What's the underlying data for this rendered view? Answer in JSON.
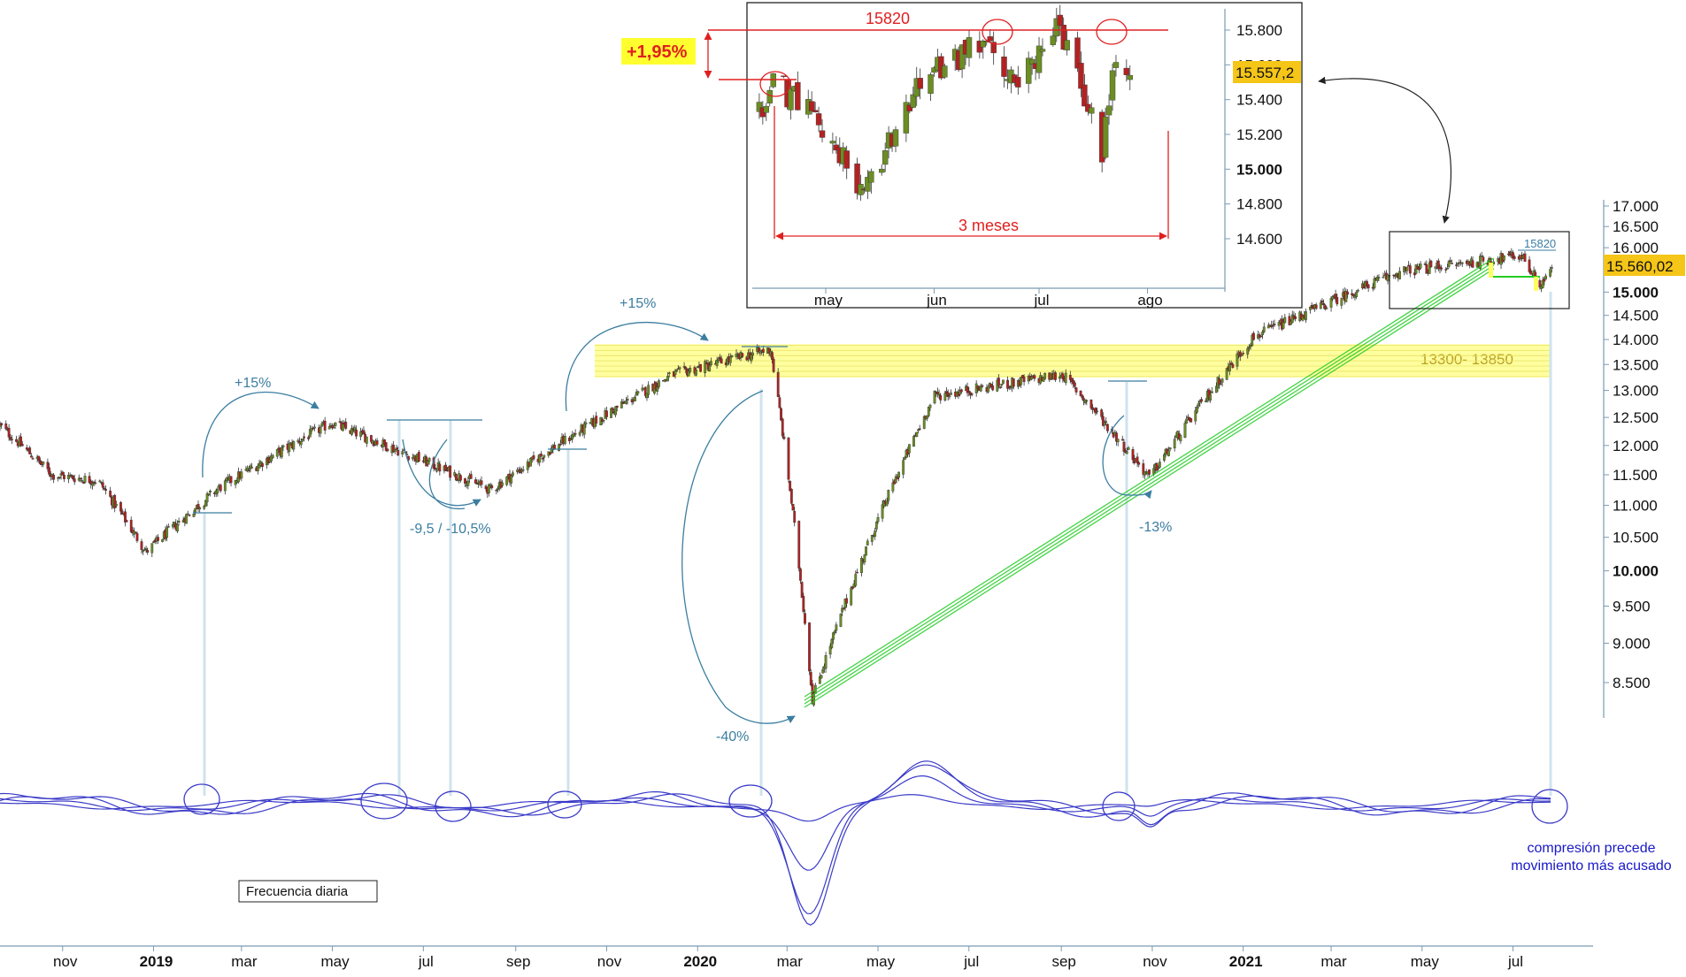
{
  "chart_data": [
    {
      "type": "candlestick",
      "y_axis": {
        "ticks": [
          8500,
          9000,
          9500,
          10000,
          10500,
          11000,
          11500,
          12000,
          12500,
          13000,
          13500,
          14000,
          14500,
          15000,
          15500,
          16000,
          16500,
          17000
        ],
        "labels": [
          "8.500",
          "9.000",
          "9.500",
          "10.000",
          "10.500",
          "11.000",
          "11.500",
          "12.000",
          "12.500",
          "13.000",
          "13.500",
          "14.000",
          "14.500",
          "15.000",
          "15.500",
          "16.000",
          "16.500",
          "17.000"
        ],
        "bold": [
          "10.000",
          "15.000"
        ],
        "scale": "log"
      },
      "x_axis": {
        "ticks": [
          {
            "date": "2018-11",
            "label": "nov",
            "bold": false
          },
          {
            "date": "2019-01",
            "label": "2019",
            "bold": true
          },
          {
            "date": "2019-03",
            "label": "mar",
            "bold": false
          },
          {
            "date": "2019-05",
            "label": "may",
            "bold": false
          },
          {
            "date": "2019-07",
            "label": "jul",
            "bold": false
          },
          {
            "date": "2019-09",
            "label": "sep",
            "bold": false
          },
          {
            "date": "2019-11",
            "label": "nov",
            "bold": false
          },
          {
            "date": "2020-01",
            "label": "2020",
            "bold": true
          },
          {
            "date": "2020-03",
            "label": "mar",
            "bold": false
          },
          {
            "date": "2020-05",
            "label": "may",
            "bold": false
          },
          {
            "date": "2020-07",
            "label": "jul",
            "bold": false
          },
          {
            "date": "2020-09",
            "label": "sep",
            "bold": false
          },
          {
            "date": "2020-11",
            "label": "nov",
            "bold": false
          },
          {
            "date": "2021-01",
            "label": "2021",
            "bold": true
          },
          {
            "date": "2021-03",
            "label": "mar",
            "bold": false
          },
          {
            "date": "2021-05",
            "label": "may",
            "bold": false
          },
          {
            "date": "2021-07",
            "label": "jul",
            "bold": false
          }
        ]
      },
      "last_price_label": "15.560,02",
      "last_price": 15560.02,
      "key_prices": [
        {
          "date": "2018-12-27",
          "price": 10280
        },
        {
          "date": "2019-02-15",
          "price": 11300
        },
        {
          "date": "2019-04-30",
          "price": 12400
        },
        {
          "date": "2019-08-15",
          "price": 11250
        },
        {
          "date": "2019-12-15",
          "price": 13300
        },
        {
          "date": "2020-02-19",
          "price": 13800
        },
        {
          "date": "2020-03-18",
          "price": 8300
        },
        {
          "date": "2020-06-08",
          "price": 12900
        },
        {
          "date": "2020-09-02",
          "price": 13300
        },
        {
          "date": "2020-10-30",
          "price": 11450
        },
        {
          "date": "2021-01-08",
          "price": 14050
        },
        {
          "date": "2021-04-16",
          "price": 15450
        },
        {
          "date": "2021-07-07",
          "price": 15820
        },
        {
          "date": "2021-07-19",
          "price": 15130
        },
        {
          "date": "2021-07-27",
          "price": 15560
        }
      ],
      "resistance_zone": {
        "label": "13300- 13850",
        "low": 13300,
        "high": 13850
      },
      "annotations": {
        "up1": "+15%",
        "down1": "-9,5 / -10,5%",
        "up2": "+15%",
        "crash": "-40%",
        "down2": "-13%",
        "box_label": "15820",
        "indicator_note_line1": "compresión precede",
        "indicator_note_line2": "movimiento más acusado",
        "frequency": "Frecuencia diaria"
      },
      "colors": {
        "up_candle": "#6b8e23",
        "down_candle": "#b22222",
        "zone": "#ffff80",
        "trendline": "#22cc22",
        "annotation": "#3b7ea1",
        "oscillator": "#3a3ac8",
        "last_price_bg": "#f5c518"
      }
    },
    {
      "type": "candlestick",
      "inset": true,
      "y_axis": {
        "ticks": [
          14600,
          14800,
          15000,
          15200,
          15400,
          15600,
          15800
        ],
        "labels": [
          "14.600",
          "14.800",
          "15.000",
          "15.200",
          "15.400",
          "15.600",
          "15.800"
        ],
        "bold": [
          "15.000"
        ]
      },
      "x_axis": {
        "labels": [
          "may",
          "jun",
          "jul",
          "ago"
        ]
      },
      "last_price_label": "15.557,2",
      "last_price": 15557.2,
      "resistance_label": "15820",
      "resistance": 15820,
      "pct_label": "+1,95%",
      "duration_label": "3 meses",
      "key_prices": [
        {
          "date": "2021-04-16",
          "price": 15500
        },
        {
          "date": "2021-04-28",
          "price": 15300
        },
        {
          "date": "2021-05-12",
          "price": 14850
        },
        {
          "date": "2021-05-26",
          "price": 15450
        },
        {
          "date": "2021-06-16",
          "price": 15780
        },
        {
          "date": "2021-06-21",
          "price": 15450
        },
        {
          "date": "2021-07-07",
          "price": 15820
        },
        {
          "date": "2021-07-19",
          "price": 15100
        },
        {
          "date": "2021-07-23",
          "price": 15650
        },
        {
          "date": "2021-07-27",
          "price": 15557
        }
      ]
    }
  ]
}
